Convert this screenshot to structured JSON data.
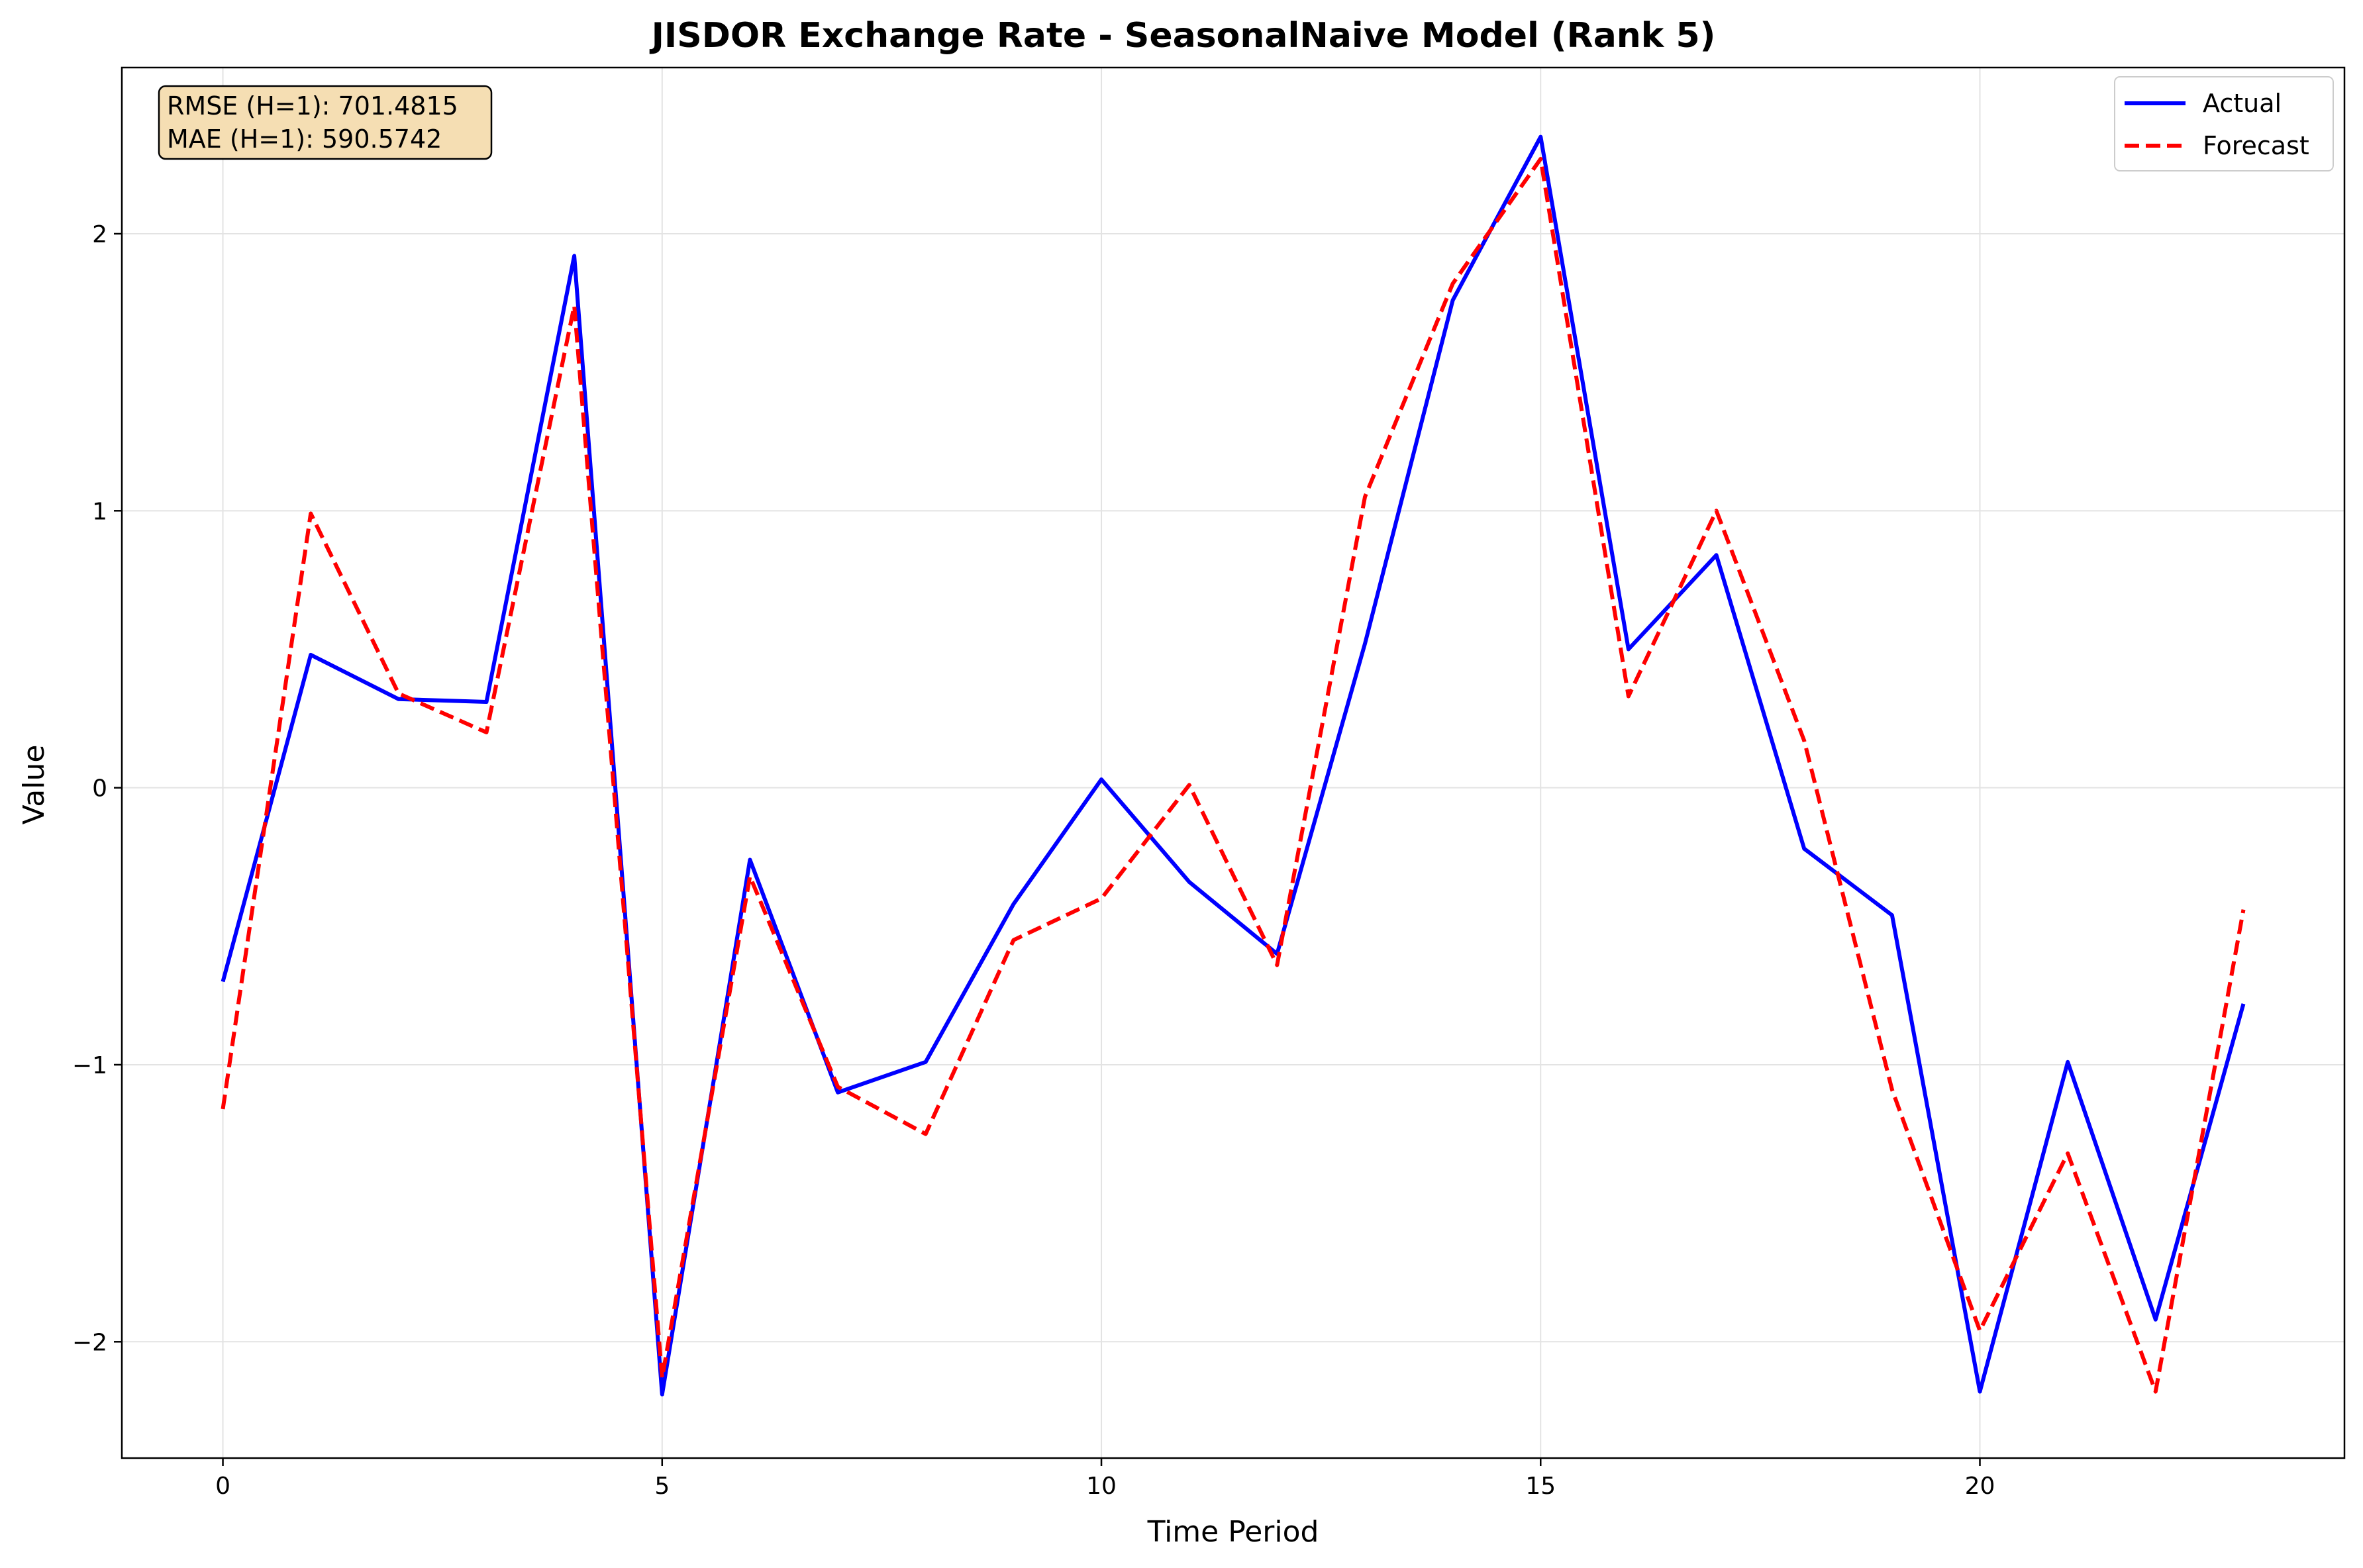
{
  "chart_data": {
    "type": "line",
    "title": "JISDOR Exchange Rate - SeasonalNaive Model (Rank 5)",
    "xlabel": "Time Period",
    "ylabel": "Value",
    "xlim": [
      -1.15,
      24.15
    ],
    "ylim": [
      -2.42,
      2.6
    ],
    "x_ticks": [
      0,
      5,
      10,
      15,
      20
    ],
    "y_ticks": [
      -2,
      -1,
      0,
      1,
      2
    ],
    "x_tick_labels": [
      "0",
      "5",
      "10",
      "15",
      "20"
    ],
    "y_tick_labels": [
      "−2",
      "−1",
      "0",
      "1",
      "2"
    ],
    "grid": true,
    "legend_position": "top-right",
    "x": [
      0,
      1,
      2,
      3,
      4,
      5,
      6,
      7,
      8,
      9,
      10,
      11,
      12,
      13,
      14,
      15,
      16,
      17,
      18,
      19,
      20,
      21,
      22,
      23
    ],
    "series": [
      {
        "name": "Actual",
        "color": "#0000ff",
        "style": "solid",
        "values": [
          -0.7,
          0.48,
          0.32,
          0.31,
          1.92,
          -2.19,
          -0.26,
          -1.1,
          -0.99,
          -0.42,
          0.03,
          -0.34,
          -0.6,
          0.52,
          1.76,
          2.35,
          0.5,
          0.84,
          -0.22,
          -0.46,
          -2.18,
          -0.99,
          -1.92,
          -0.78
        ]
      },
      {
        "name": "Forecast",
        "color": "#ff0000",
        "style": "dashed",
        "values": [
          -1.16,
          0.99,
          0.34,
          0.2,
          1.74,
          -2.13,
          -0.32,
          -1.08,
          -1.25,
          -0.55,
          -0.4,
          0.01,
          -0.64,
          1.05,
          1.82,
          2.27,
          0.33,
          1.0,
          0.17,
          -1.09,
          -1.96,
          -1.32,
          -2.18,
          -0.44
        ]
      }
    ],
    "annotation": {
      "lines": [
        "RMSE (H=1): 701.4815",
        "MAE (H=1): 590.5742"
      ],
      "background": "#f5deb3",
      "position": "top-left"
    }
  }
}
